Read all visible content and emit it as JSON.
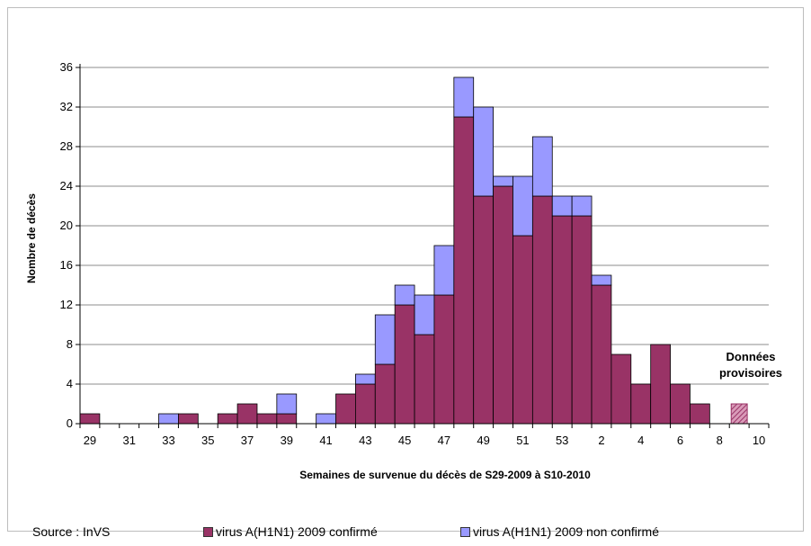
{
  "chart_data": {
    "type": "bar",
    "stacked": true,
    "xlabel": "Semaines de survenue du décès de S29-2009 à S10-2010",
    "ylabel": "Nombre de décès",
    "ylim": [
      0,
      36
    ],
    "yticks": [
      0,
      4,
      8,
      12,
      16,
      20,
      24,
      28,
      32,
      36
    ],
    "grid": "horizontal",
    "legend_position": "bottom",
    "categories": [
      "29",
      "30",
      "31",
      "32",
      "33",
      "34",
      "35",
      "36",
      "37",
      "38",
      "39",
      "40",
      "41",
      "42",
      "43",
      "44",
      "45",
      "46",
      "47",
      "48",
      "49",
      "50",
      "51",
      "52",
      "53",
      "1",
      "2",
      "3",
      "4",
      "5",
      "6",
      "7",
      "8",
      "9",
      "10"
    ],
    "xtick_labels": [
      "29",
      "31",
      "33",
      "35",
      "37",
      "39",
      "41",
      "43",
      "45",
      "47",
      "49",
      "51",
      "53",
      "2",
      "4",
      "6",
      "8",
      "10"
    ],
    "series": [
      {
        "name": "virus A(H1N1) 2009 confirmé",
        "color": "#993366",
        "values": [
          1,
          0,
          0,
          0,
          0,
          1,
          0,
          1,
          2,
          1,
          1,
          0,
          0,
          3,
          4,
          6,
          12,
          9,
          13,
          31,
          23,
          24,
          19,
          23,
          21,
          21,
          14,
          7,
          4,
          8,
          4,
          2,
          0,
          0,
          0
        ]
      },
      {
        "name": "virus A(H1N1) 2009 non confirmé",
        "color": "#9999ff",
        "values": [
          0,
          0,
          0,
          0,
          1,
          0,
          0,
          0,
          0,
          0,
          2,
          0,
          1,
          0,
          1,
          5,
          2,
          4,
          5,
          4,
          9,
          1,
          6,
          6,
          2,
          2,
          1,
          0,
          0,
          0,
          0,
          0,
          0,
          0,
          0
        ]
      }
    ],
    "provisional": {
      "category": "9",
      "value": 2,
      "label_line1": "Données",
      "label_line2": "provisoires"
    },
    "source": "Source : InVS"
  }
}
